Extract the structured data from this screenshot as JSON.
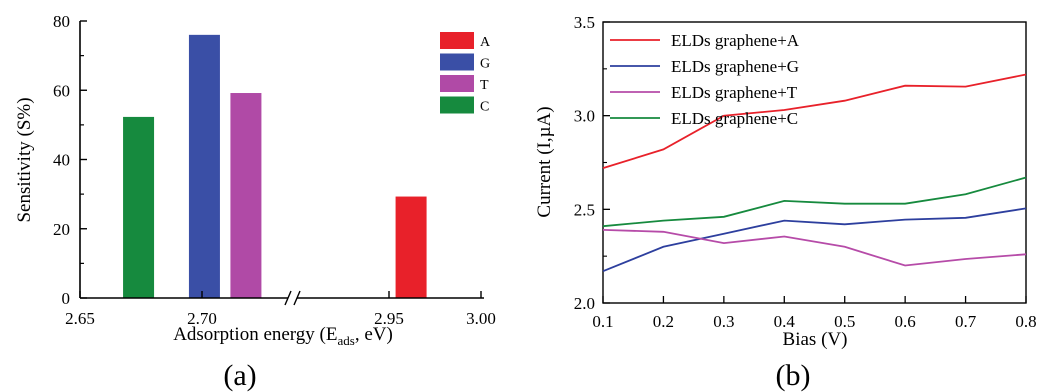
{
  "chart_data": [
    {
      "panel_label": "(a)",
      "type": "bar",
      "xlabel": "Adsorption energy (E",
      "xlabel_sub": "ads",
      "xlabel_tail": ", eV)",
      "ylabel": "Sensitivity (S%)",
      "ylim": [
        0,
        80
      ],
      "yticks": [
        "0",
        "20",
        "40",
        "60",
        "80"
      ],
      "xticks": [
        "2.65",
        "2.70",
        "2.95",
        "3.00"
      ],
      "x_axis_break": "between 2.70 and 2.95",
      "legend_position": "top-right",
      "bars": [
        {
          "name": "C",
          "x": 2.674,
          "value": 52.3,
          "color": "#168a3e"
        },
        {
          "name": "G",
          "x": 2.701,
          "value": 76.0,
          "color": "#3a4fa6"
        },
        {
          "name": "T",
          "x": 2.718,
          "value": 59.2,
          "color": "#b04aa6"
        },
        {
          "name": "A",
          "x": 2.962,
          "value": 29.3,
          "color": "#e8212a"
        }
      ],
      "legend": [
        {
          "name": "A",
          "color": "#e8212a"
        },
        {
          "name": "G",
          "color": "#3a4fa6"
        },
        {
          "name": "T",
          "color": "#b04aa6"
        },
        {
          "name": "C",
          "color": "#168a3e"
        }
      ]
    },
    {
      "panel_label": "(b)",
      "type": "line",
      "xlabel": "Bias (V)",
      "ylabel": "Current (I,µA)",
      "xlim": [
        0.1,
        0.8
      ],
      "ylim": [
        2.0,
        3.5
      ],
      "xticks": [
        "0.1",
        "0.2",
        "0.3",
        "0.4",
        "0.5",
        "0.6",
        "0.7",
        "0.8"
      ],
      "yticks": [
        "2.0",
        "2.5",
        "3.0",
        "3.5"
      ],
      "legend_position": "top-left",
      "x": [
        0.1,
        0.2,
        0.3,
        0.4,
        0.5,
        0.6,
        0.7,
        0.8
      ],
      "series": [
        {
          "name": "ELDs graphene+A",
          "color": "#e8212a",
          "values": [
            2.72,
            2.82,
            3.0,
            3.03,
            3.08,
            3.16,
            3.155,
            3.22
          ]
        },
        {
          "name": "ELDs graphene+G",
          "color": "#2d3f9e",
          "values": [
            2.17,
            2.3,
            2.37,
            2.44,
            2.42,
            2.445,
            2.455,
            2.505
          ]
        },
        {
          "name": "ELDs graphene+T",
          "color": "#b64ba8",
          "values": [
            2.39,
            2.38,
            2.32,
            2.355,
            2.3,
            2.2,
            2.235,
            2.26
          ]
        },
        {
          "name": "ELDs graphene+C",
          "color": "#168a3e",
          "values": [
            2.41,
            2.44,
            2.46,
            2.545,
            2.53,
            2.53,
            2.58,
            2.67
          ]
        }
      ]
    }
  ]
}
